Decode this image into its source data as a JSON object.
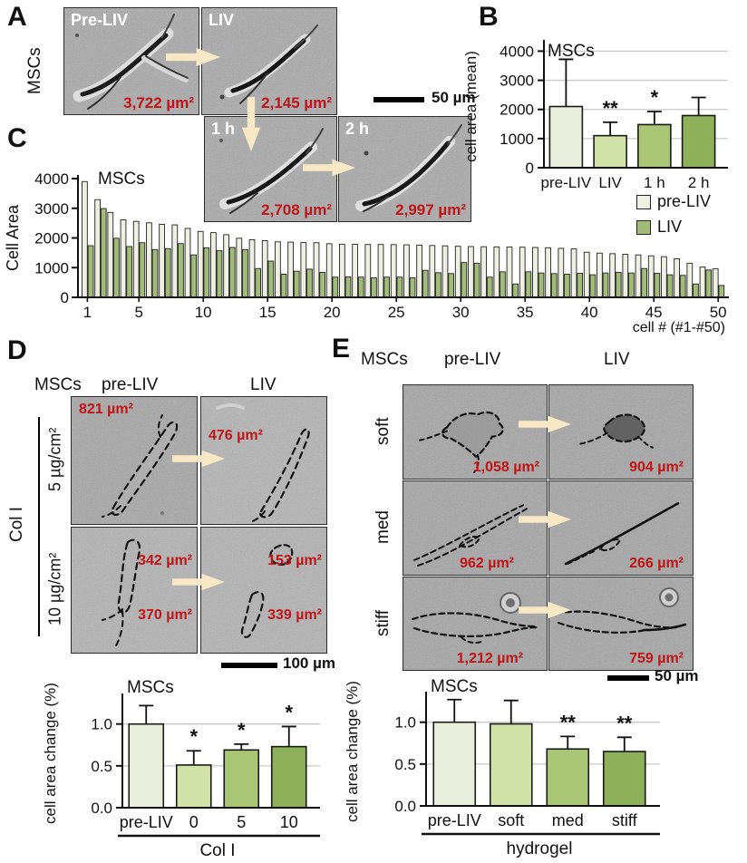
{
  "colors": {
    "bar_shades": [
      "#e9eedd",
      "#d3e2a9",
      "#abc577",
      "#8fb05a"
    ],
    "series_pre": "#eef0e3",
    "series_liv": "#a2ba7a",
    "red_label": "#c01417",
    "arrow_fill": "#f7e8c6",
    "grid": "#c9c9c9"
  },
  "panel_a": {
    "letter": "A",
    "row_label": "MSCs",
    "images": [
      {
        "label": "Pre-LIV",
        "area": "3,722 µm²"
      },
      {
        "label": "LIV",
        "area": "2,145 µm²"
      },
      {
        "label": "1 h",
        "area": "2,708 µm²"
      },
      {
        "label": "2 h",
        "area": "2,997 µm²"
      }
    ],
    "scale_bar": "50 µm"
  },
  "panel_b": {
    "letter": "B"
  },
  "panel_c": {
    "letter": "C",
    "legend": [
      "pre-LIV",
      "LIV"
    ]
  },
  "panel_d": {
    "letter": "D",
    "header": {
      "group": "MSCs",
      "pre": "pre-LIV",
      "liv": "LIV"
    },
    "side_group": "Col I",
    "rows": [
      {
        "label": "5 µg/cm²",
        "pre_areas": [
          "821 µm²"
        ],
        "liv_areas": [
          "476 µm²"
        ]
      },
      {
        "label": "10 µg/cm²",
        "pre_areas": [
          "342 µm²",
          "370 µm²"
        ],
        "liv_areas": [
          "153 µm²",
          "339 µm²"
        ]
      }
    ],
    "scale_bar": "100 µm"
  },
  "panel_e": {
    "letter": "E",
    "header": {
      "group": "MSCs",
      "pre": "pre-LIV",
      "liv": "LIV"
    },
    "rows": [
      {
        "label": "soft",
        "pre_area": "1,058 µm²",
        "liv_area": "904 µm²"
      },
      {
        "label": "med",
        "pre_area": "962 µm²",
        "liv_area": "266 µm²"
      },
      {
        "label": "stiff",
        "pre_area": "1,212 µm²",
        "liv_area": "759 µm²"
      }
    ],
    "scale_bar": "50 µm"
  },
  "chart_data": [
    {
      "id": "b",
      "type": "bar",
      "title": "MSCs",
      "ylabel": "cell area (mean)",
      "categories": [
        "pre-LIV",
        "LIV",
        "1 h",
        "2 h"
      ],
      "values": [
        2100,
        1100,
        1480,
        1790
      ],
      "errors_up": [
        1620,
        460,
        450,
        620
      ],
      "sig": [
        "",
        "**",
        "*",
        ""
      ],
      "ylim": [
        0,
        4200
      ],
      "yticks": [
        0,
        1000,
        2000,
        3000,
        4000
      ],
      "ytick_labels": [
        "0",
        "1000",
        "2000",
        "3000",
        "4000"
      ],
      "grid": true,
      "legend_position": "below-right"
    },
    {
      "id": "c",
      "type": "paired-bar",
      "title": "MSCs",
      "ylabel": "Cell Area",
      "xlabel": "cell # (#1-#50)",
      "xticks": [
        1,
        5,
        10,
        15,
        20,
        25,
        30,
        35,
        40,
        45,
        50
      ],
      "ylim": [
        0,
        4000
      ],
      "yticks": [
        0,
        1000,
        2000,
        3000,
        4000
      ],
      "ytick_labels": [
        "0",
        "1000",
        "2000",
        "3000",
        "4000"
      ],
      "series": [
        {
          "name": "pre-LIV",
          "values": [
            3900,
            3290,
            2860,
            2610,
            2560,
            2510,
            2460,
            2440,
            2320,
            2220,
            2180,
            2110,
            1990,
            1940,
            1910,
            1870,
            1860,
            1845,
            1840,
            1805,
            1790,
            1785,
            1780,
            1780,
            1775,
            1770,
            1760,
            1745,
            1735,
            1720,
            1710,
            1705,
            1700,
            1695,
            1690,
            1680,
            1670,
            1650,
            1630,
            1520,
            1490,
            1470,
            1450,
            1430,
            1400,
            1370,
            1300,
            1150,
            1020,
            960
          ]
        },
        {
          "name": "LIV",
          "values": [
            1740,
            2990,
            1990,
            1710,
            1840,
            1610,
            1640,
            1810,
            1430,
            1670,
            1570,
            1680,
            1610,
            970,
            1220,
            780,
            880,
            950,
            840,
            680,
            690,
            680,
            660,
            680,
            680,
            660,
            910,
            830,
            800,
            1170,
            1150,
            680,
            860,
            450,
            860,
            820,
            800,
            780,
            810,
            760,
            820,
            840,
            820,
            970,
            810,
            760,
            740,
            450,
            920,
            400
          ]
        }
      ],
      "grid": false
    },
    {
      "id": "d",
      "type": "bar",
      "title": "MSCs",
      "ylabel": "cell area change (%)",
      "categories": [
        "pre-LIV",
        "0",
        "5",
        "10"
      ],
      "values": [
        1.0,
        0.51,
        0.69,
        0.73
      ],
      "errors_up": [
        0.22,
        0.17,
        0.07,
        0.24
      ],
      "sig": [
        "",
        "*",
        "*",
        "*"
      ],
      "group_label": "Col I",
      "ylim": [
        0,
        1.3
      ],
      "yticks": [
        0,
        0.5,
        1.0
      ],
      "ytick_labels": [
        "0.0",
        "0.5",
        "1.0"
      ],
      "grid": true
    },
    {
      "id": "e",
      "type": "bar",
      "title": "MSCs",
      "ylabel": "cell area change (%)",
      "categories": [
        "pre-LIV",
        "soft",
        "med",
        "stiff"
      ],
      "values": [
        1.0,
        0.98,
        0.68,
        0.65
      ],
      "errors_up": [
        0.27,
        0.28,
        0.15,
        0.17
      ],
      "sig": [
        "",
        "",
        "**",
        "**"
      ],
      "group_label": "hydrogel",
      "ylim": [
        0,
        1.3
      ],
      "yticks": [
        0,
        0.5,
        1.0
      ],
      "ytick_labels": [
        "0.0",
        "0.5",
        "1.0"
      ],
      "grid": true
    }
  ]
}
